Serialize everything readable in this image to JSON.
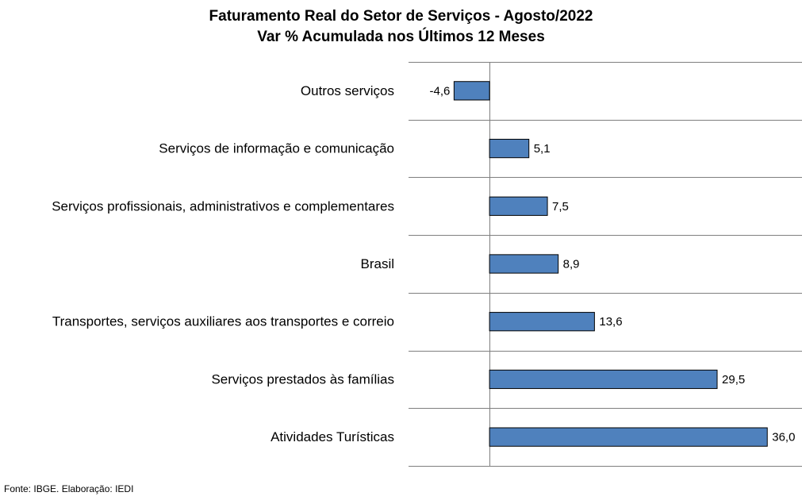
{
  "chart_data": {
    "type": "bar",
    "orientation": "horizontal",
    "title": "Faturamento Real do Setor de Serviços - Agosto/2022",
    "subtitle": "Var % Acumulada nos Últimos 12 Meses",
    "categories": [
      "Outros serviços",
      "Serviços de informação e comunicação",
      "Serviços profissionais, administrativos e complementares",
      "Brasil",
      "Transportes, serviços auxiliares aos transportes e correio",
      "Serviços prestados às famílias",
      "Atividades Turísticas"
    ],
    "values": [
      -4.6,
      5.1,
      7.5,
      8.9,
      13.6,
      29.5,
      36.0
    ],
    "value_labels": [
      "-4,6",
      "5,1",
      "7,5",
      "8,9",
      "13,6",
      "29,5",
      "36,0"
    ],
    "xlim": [
      -10.5,
      40.5
    ],
    "grid": "horizontal category separators",
    "legend": "none",
    "bar_color": "#4f81bd",
    "bar_border_color": "#000000"
  },
  "source": "Fonte: IBGE. Elaboração: IEDI"
}
